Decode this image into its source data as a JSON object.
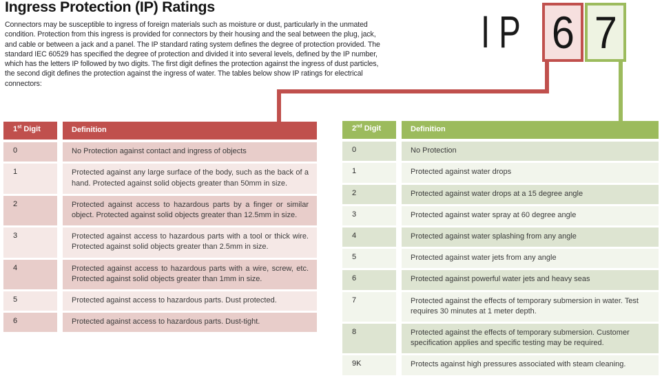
{
  "page": {
    "title": "Ingress Protection (IP) Ratings",
    "intro": "Connectors may be susceptible to ingress of foreign materials such as moisture or dust, particularly in the unmated condition. Protection from this ingress is provided for connectors by their housing and the seal between the plug, jack, and cable or between a jack and a panel. The IP standard rating system defines the degree of protection provided. The standard IEC 60529 has specified the degree of protection and divided it into several levels, defined by the IP number, which has the letters IP followed by two digits. The first digit defines the protection against the ingress of dust particles, the second digit defines the protection against the ingress of water. The tables below show IP ratings for electrical connectors:"
  },
  "ip_label": {
    "prefix": "IP",
    "first_digit": "6",
    "second_digit": "7"
  },
  "colors": {
    "red_accent": "#c0504d",
    "red_box_fill": "#f6e0df",
    "red_row_dark": "#e8cdca",
    "red_row_light": "#f5e8e6",
    "green_accent": "#9cbb5d",
    "green_box_fill": "#eef3e2",
    "green_row_dark": "#dde4d1",
    "green_row_light": "#f2f5ec"
  },
  "left_table": {
    "header": {
      "digit_label": "1",
      "digit_sup": "st",
      "digit_word": "Digit",
      "definition_label": "Definition"
    },
    "rows": [
      {
        "digit": "0",
        "definition": "No Protection against contact and ingress of objects"
      },
      {
        "digit": "1",
        "definition": "Protected against any large surface of the body, such as the back of a hand. Protected against solid objects greater than 50mm in size."
      },
      {
        "digit": "2",
        "definition": "Protected against access to hazardous parts by a finger or similar object. Protected against solid objects greater than 12.5mm in size."
      },
      {
        "digit": "3",
        "definition": "Protected against access to hazardous parts with a tool or thick wire. Protected against solid objects greater than 2.5mm in size."
      },
      {
        "digit": "4",
        "definition": "Protected against access to hazardous parts with a wire, screw, etc. Protected against solid objects greater than 1mm in size."
      },
      {
        "digit": "5",
        "definition": "Protected against access to hazardous parts. Dust protected."
      },
      {
        "digit": "6",
        "definition": "Protected against access to hazardous parts. Dust-tight."
      }
    ]
  },
  "right_table": {
    "header": {
      "digit_label": "2",
      "digit_sup": "nd",
      "digit_word": "Digit",
      "definition_label": "Definition"
    },
    "rows": [
      {
        "digit": "0",
        "definition": "No Protection"
      },
      {
        "digit": "1",
        "definition": "Protected against water drops"
      },
      {
        "digit": "2",
        "definition": "Protected against water drops at a 15 degree angle"
      },
      {
        "digit": "3",
        "definition": "Protected against water spray at 60 degree angle"
      },
      {
        "digit": "4",
        "definition": "Protected against water splashing from any angle"
      },
      {
        "digit": "5",
        "definition": "Protected against water jets from any angle"
      },
      {
        "digit": "6",
        "definition": "Protected against powerful water jets and heavy seas"
      },
      {
        "digit": "7",
        "definition": "Protected against the effects of temporary submersion in water. Test requires 30 minutes at 1 meter depth."
      },
      {
        "digit": "8",
        "definition": "Protected against the effects of temporary submersion. Customer specification applies and specific testing may be required."
      },
      {
        "digit": "9K",
        "definition": "Protects against high pressures associated with steam cleaning."
      }
    ]
  }
}
